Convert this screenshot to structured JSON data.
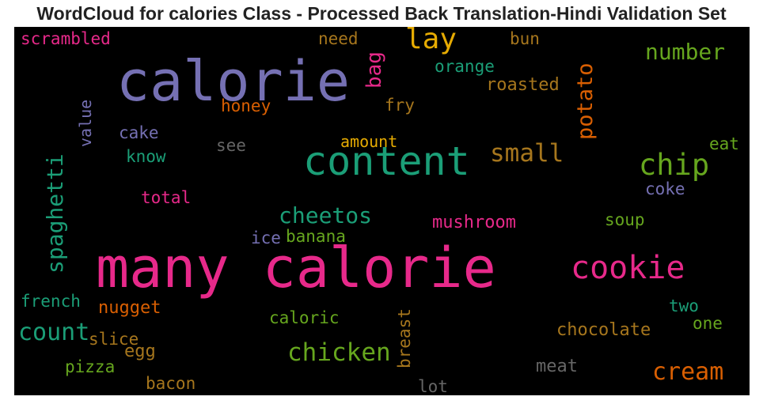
{
  "title": "WordCloud for calories Class - Processed Back Translation-Hindi Validation Set",
  "colors": {
    "purple": "#7570b3",
    "pink": "#e7298a",
    "teal": "#1b9e77",
    "green": "#66a61e",
    "orange": "#d95f02",
    "gold": "#e6ab02",
    "brown": "#a6761d",
    "gray": "#666666"
  },
  "words": [
    {
      "text": "scrambled",
      "color": "#e7298a"
    },
    {
      "text": "calorie",
      "color": "#7570b3"
    },
    {
      "text": "need",
      "color": "#a6761d"
    },
    {
      "text": "lay",
      "color": "#e6ab02"
    },
    {
      "text": "bag",
      "color": "#e7298a"
    },
    {
      "text": "bun",
      "color": "#a6761d"
    },
    {
      "text": "orange",
      "color": "#1b9e77"
    },
    {
      "text": "number",
      "color": "#66a61e"
    },
    {
      "text": "roasted",
      "color": "#a6761d"
    },
    {
      "text": "value",
      "color": "#7570b3"
    },
    {
      "text": "honey",
      "color": "#d95f02"
    },
    {
      "text": "fry",
      "color": "#a6761d"
    },
    {
      "text": "potato",
      "color": "#d95f02"
    },
    {
      "text": "cake",
      "color": "#7570b3"
    },
    {
      "text": "amount",
      "color": "#e6ab02"
    },
    {
      "text": "eat",
      "color": "#66a61e"
    },
    {
      "text": "know",
      "color": "#1b9e77"
    },
    {
      "text": "see",
      "color": "#666666"
    },
    {
      "text": "content",
      "color": "#1b9e77"
    },
    {
      "text": "small",
      "color": "#a6761d"
    },
    {
      "text": "chip",
      "color": "#66a61e"
    },
    {
      "text": "spaghetti",
      "color": "#1b9e77"
    },
    {
      "text": "coke",
      "color": "#7570b3"
    },
    {
      "text": "total",
      "color": "#e7298a"
    },
    {
      "text": "cheetos",
      "color": "#1b9e77"
    },
    {
      "text": "soup",
      "color": "#66a61e"
    },
    {
      "text": "mushroom",
      "color": "#e7298a"
    },
    {
      "text": "ice",
      "color": "#7570b3"
    },
    {
      "text": "banana",
      "color": "#66a61e"
    },
    {
      "text": "many calorie",
      "color": "#e7298a"
    },
    {
      "text": "cookie",
      "color": "#e7298a"
    },
    {
      "text": "french",
      "color": "#1b9e77"
    },
    {
      "text": "nugget",
      "color": "#d95f02"
    },
    {
      "text": "two",
      "color": "#1b9e77"
    },
    {
      "text": "breast",
      "color": "#a6761d"
    },
    {
      "text": "caloric",
      "color": "#66a61e"
    },
    {
      "text": "one",
      "color": "#66a61e"
    },
    {
      "text": "count",
      "color": "#1b9e77"
    },
    {
      "text": "chocolate",
      "color": "#a6761d"
    },
    {
      "text": "slice",
      "color": "#a6761d"
    },
    {
      "text": "egg",
      "color": "#a6761d"
    },
    {
      "text": "chicken",
      "color": "#66a61e"
    },
    {
      "text": "pizza",
      "color": "#66a61e"
    },
    {
      "text": "meat",
      "color": "#666666"
    },
    {
      "text": "cream",
      "color": "#d95f02"
    },
    {
      "text": "bacon",
      "color": "#a6761d"
    },
    {
      "text": "lot",
      "color": "#666666"
    }
  ]
}
